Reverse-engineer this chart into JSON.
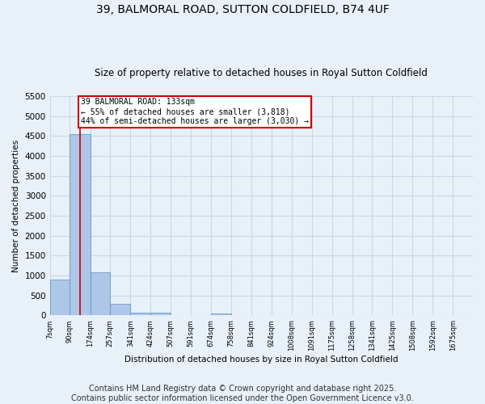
{
  "title1": "39, BALMORAL ROAD, SUTTON COLDFIELD, B74 4UF",
  "title2": "Size of property relative to detached houses in Royal Sutton Coldfield",
  "xlabel": "Distribution of detached houses by size in Royal Sutton Coldfield",
  "ylabel": "Number of detached properties",
  "bin_labels": [
    "7sqm",
    "90sqm",
    "174sqm",
    "257sqm",
    "341sqm",
    "424sqm",
    "507sqm",
    "591sqm",
    "674sqm",
    "758sqm",
    "841sqm",
    "924sqm",
    "1008sqm",
    "1091sqm",
    "1175sqm",
    "1258sqm",
    "1341sqm",
    "1425sqm",
    "1508sqm",
    "1592sqm",
    "1675sqm"
  ],
  "bin_edges": [
    7,
    90,
    174,
    257,
    341,
    424,
    507,
    591,
    674,
    758,
    841,
    924,
    1008,
    1091,
    1175,
    1258,
    1341,
    1425,
    1508,
    1592,
    1675
  ],
  "bar_heights": [
    900,
    4550,
    1075,
    295,
    70,
    60,
    0,
    0,
    50,
    0,
    0,
    0,
    0,
    0,
    0,
    0,
    0,
    0,
    0,
    0
  ],
  "bar_color": "#aec6e8",
  "bar_edge_color": "#5a8fc0",
  "property_line_x": 133,
  "property_line_color": "#cc0000",
  "annotation_text": "39 BALMORAL ROAD: 133sqm\n← 55% of detached houses are smaller (3,818)\n44% of semi-detached houses are larger (3,030) →",
  "annotation_box_color": "#ffffff",
  "annotation_box_edge_color": "#cc0000",
  "ylim": [
    0,
    5500
  ],
  "yticks": [
    0,
    500,
    1000,
    1500,
    2000,
    2500,
    3000,
    3500,
    4000,
    4500,
    5000,
    5500
  ],
  "grid_color": "#c8d8e8",
  "background_color": "#e8f0f8",
  "footer_text": "Contains HM Land Registry data © Crown copyright and database right 2025.\nContains public sector information licensed under the Open Government Licence v3.0.",
  "footer_fontsize": 7,
  "title_fontsize1": 10,
  "title_fontsize2": 8.5
}
